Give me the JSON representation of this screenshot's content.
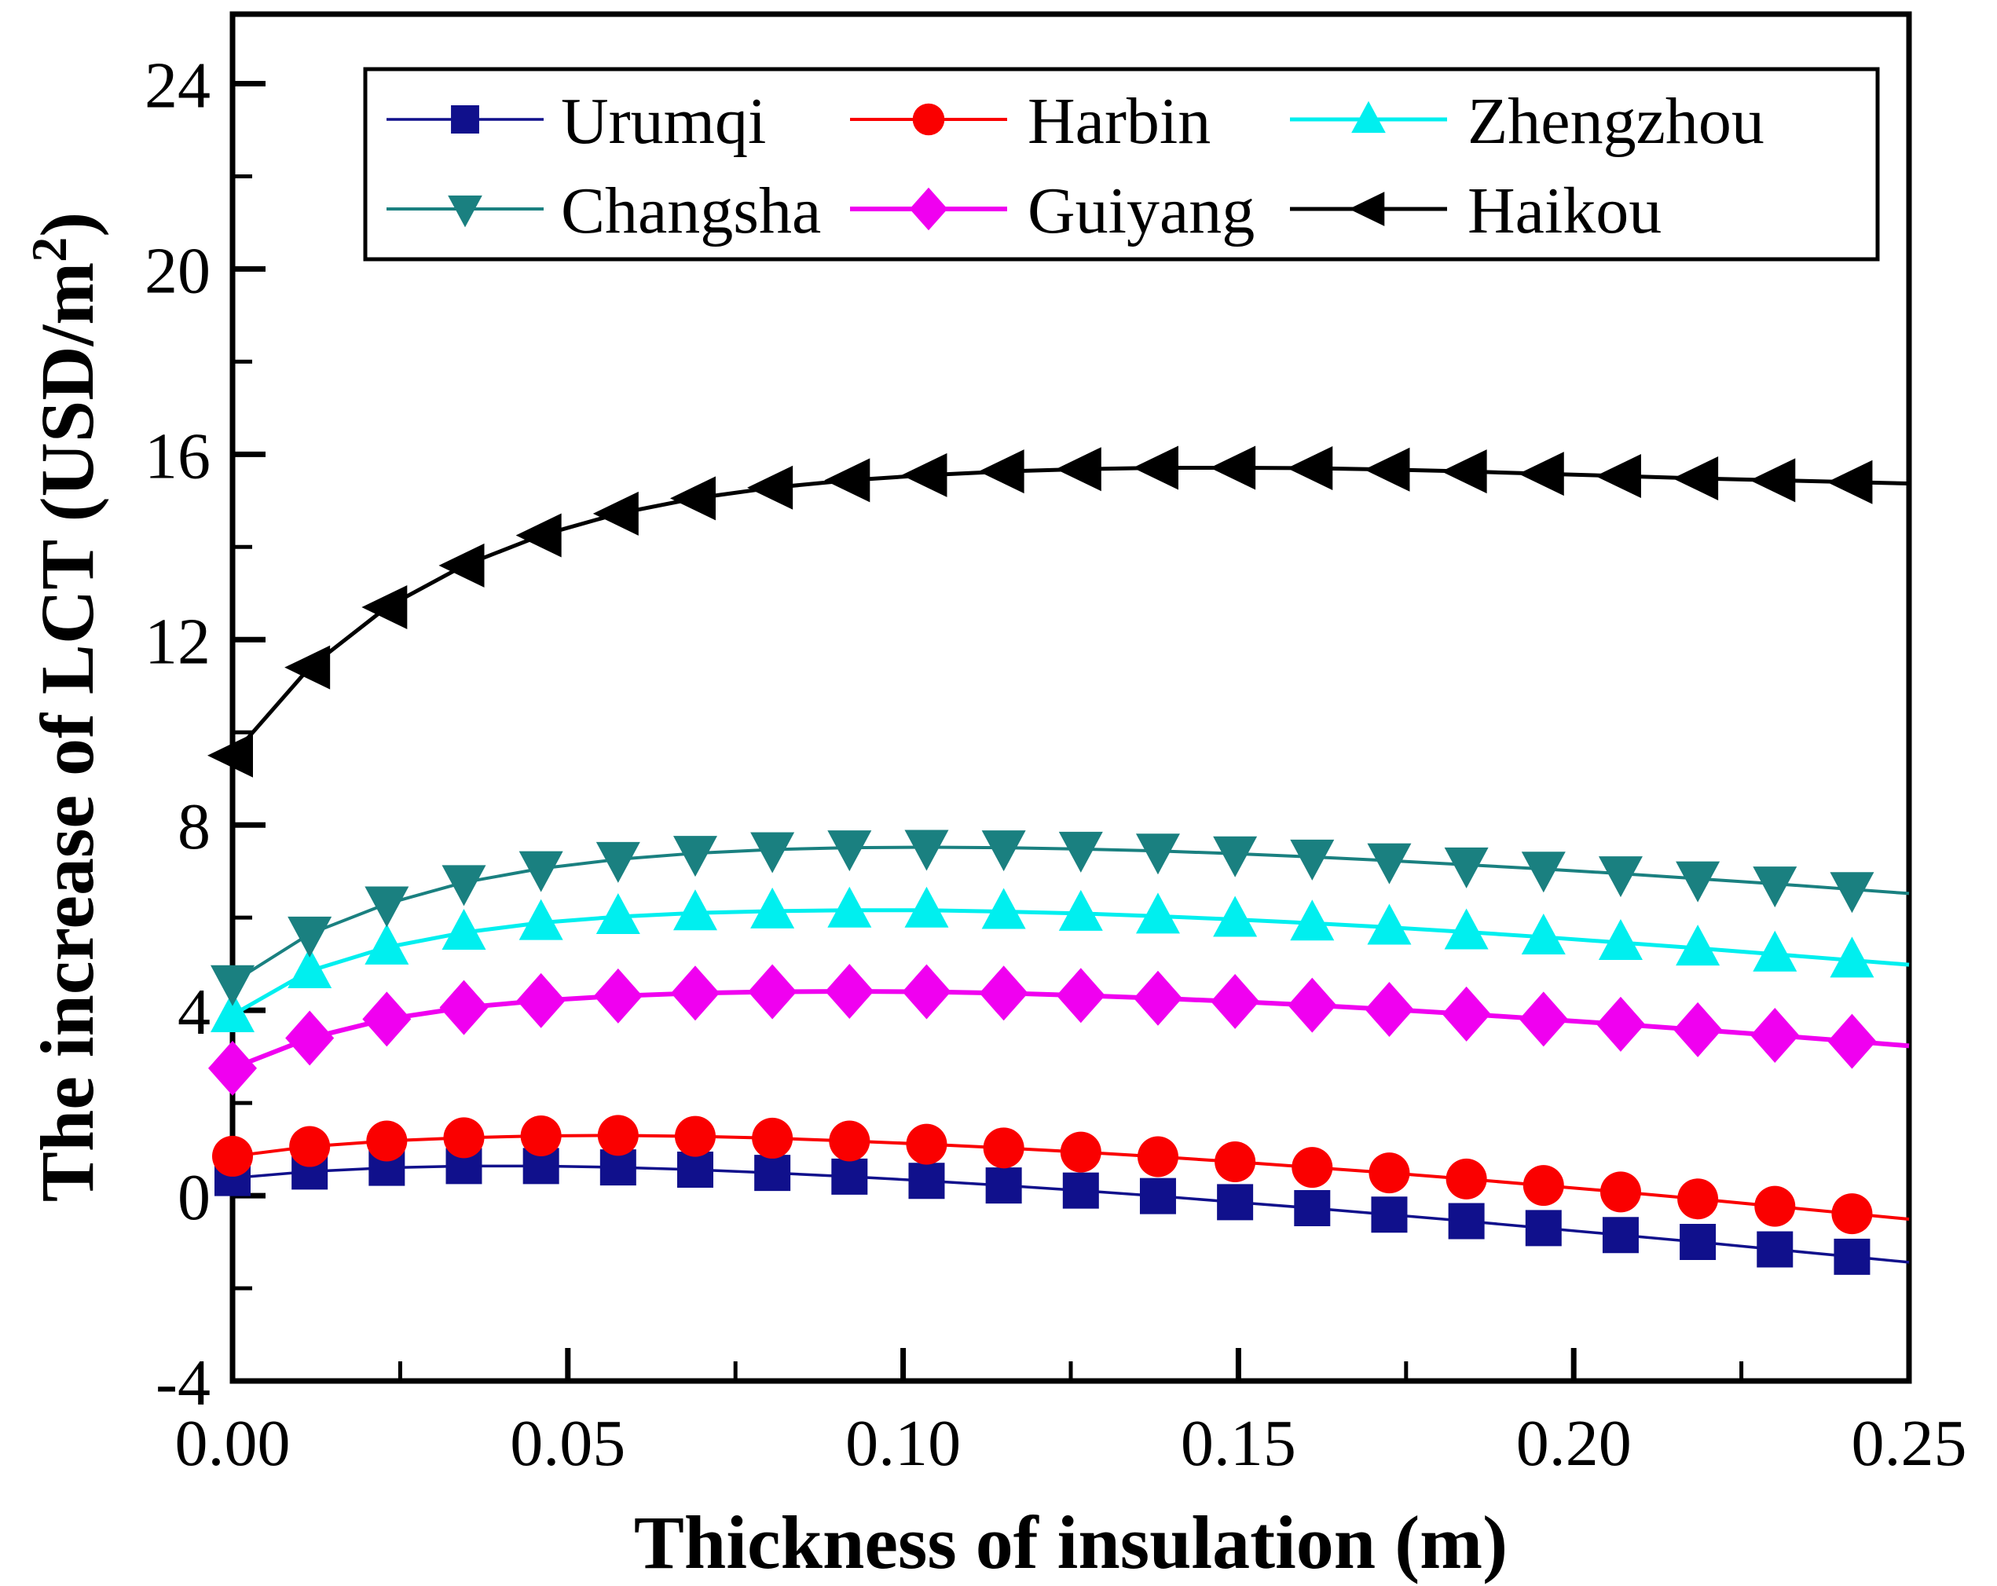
{
  "figure": {
    "background": "#ffffff",
    "frame_color": "#000000"
  },
  "chart_data": {
    "type": "line",
    "title": "",
    "xlabel": "Thickness of insulation (m)",
    "ylabel": "The increase of LCT (USD/m2)",
    "ylabel_parts": {
      "base": "The increase of LCT (USD/m",
      "superscript": "2",
      "close": ")"
    },
    "xlim": [
      0,
      0.25
    ],
    "ylim": [
      -4,
      25.5
    ],
    "grid": false,
    "legend_position": "top-inside",
    "x_tick_labels": [
      "0.00",
      "0.05",
      "0.10",
      "0.15",
      "0.20",
      "0.25"
    ],
    "x_major_ticks": [
      0.0,
      0.05,
      0.1,
      0.15,
      0.2,
      0.25
    ],
    "x_minor_ticks": [
      0.025,
      0.075,
      0.125,
      0.175,
      0.225
    ],
    "y_tick_labels": [
      "-4",
      "0",
      "4",
      "8",
      "12",
      "16",
      "20",
      "24"
    ],
    "y_major_ticks": [
      -4,
      0,
      4,
      8,
      12,
      16,
      20,
      24
    ],
    "y_minor_ticks": [
      -2,
      2,
      6,
      10,
      14,
      18,
      22
    ],
    "x": [
      0.0,
      0.0115,
      0.023,
      0.0345,
      0.046,
      0.0575,
      0.069,
      0.0805,
      0.092,
      0.1035,
      0.115,
      0.1265,
      0.138,
      0.1495,
      0.161,
      0.1725,
      0.184,
      0.1955,
      0.207,
      0.2185,
      0.23,
      0.2415
    ],
    "series": [
      {
        "name": "Urumqi",
        "color": "#10108C",
        "marker": "square",
        "line_width": 3.5,
        "values": [
          0.38,
          0.52,
          0.6,
          0.64,
          0.64,
          0.61,
          0.56,
          0.49,
          0.41,
          0.32,
          0.22,
          0.11,
          -0.01,
          -0.14,
          -0.27,
          -0.41,
          -0.55,
          -0.7,
          -0.85,
          -1.0,
          -1.16,
          -1.32
        ]
      },
      {
        "name": "Harbin",
        "color": "#FA0000",
        "marker": "circle",
        "line_width": 4,
        "values": [
          0.85,
          1.06,
          1.18,
          1.25,
          1.29,
          1.3,
          1.28,
          1.24,
          1.18,
          1.11,
          1.03,
          0.94,
          0.84,
          0.73,
          0.61,
          0.49,
          0.36,
          0.22,
          0.08,
          -0.07,
          -0.23,
          -0.39
        ]
      },
      {
        "name": "Zhengzhou",
        "color": "#00EFEF",
        "marker": "triangle-up",
        "line_width": 5,
        "values": [
          3.9,
          4.85,
          5.36,
          5.68,
          5.89,
          6.02,
          6.1,
          6.14,
          6.16,
          6.16,
          6.13,
          6.09,
          6.03,
          5.96,
          5.88,
          5.79,
          5.69,
          5.58,
          5.46,
          5.34,
          5.21,
          5.08
        ]
      },
      {
        "name": "Changsha",
        "color": "#1A8080",
        "marker": "triangle-down",
        "line_width": 4,
        "values": [
          4.6,
          5.65,
          6.3,
          6.76,
          7.06,
          7.26,
          7.39,
          7.47,
          7.51,
          7.52,
          7.51,
          7.48,
          7.44,
          7.38,
          7.31,
          7.23,
          7.14,
          7.05,
          6.95,
          6.84,
          6.73,
          6.61
        ]
      },
      {
        "name": "Guiyang",
        "color": "#F000F0",
        "marker": "diamond",
        "line_width": 6,
        "values": [
          2.75,
          3.4,
          3.81,
          4.06,
          4.21,
          4.31,
          4.37,
          4.4,
          4.41,
          4.4,
          4.37,
          4.32,
          4.26,
          4.19,
          4.11,
          4.02,
          3.92,
          3.81,
          3.7,
          3.58,
          3.46,
          3.33
        ]
      },
      {
        "name": "Haikou",
        "color": "#000000",
        "marker": "triangle-left",
        "line_width": 5,
        "values": [
          9.5,
          11.4,
          12.7,
          13.6,
          14.25,
          14.72,
          15.05,
          15.28,
          15.44,
          15.55,
          15.63,
          15.68,
          15.71,
          15.71,
          15.7,
          15.67,
          15.63,
          15.58,
          15.53,
          15.48,
          15.44,
          15.4
        ]
      }
    ],
    "legend_rows": [
      [
        "Urumqi",
        "Harbin",
        "Zhengzhou"
      ],
      [
        "Changsha",
        "Guiyang",
        "Haikou"
      ]
    ]
  }
}
